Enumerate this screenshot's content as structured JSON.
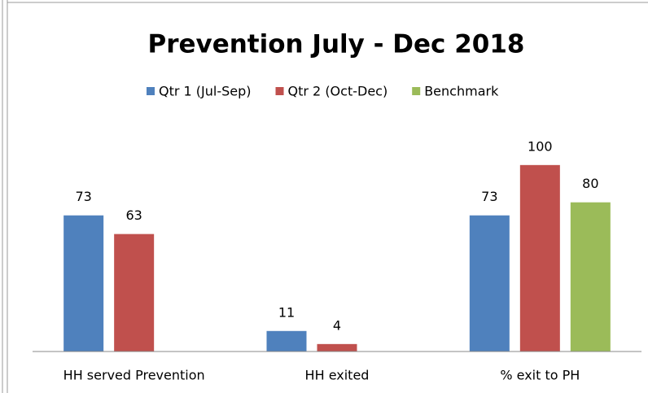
{
  "chart_data": {
    "type": "bar",
    "title": "Prevention July - Dec 2018",
    "categories": [
      "HH served Prevention",
      "HH exited",
      "% exit to PH"
    ],
    "series": [
      {
        "name": "Qtr 1 (Jul-Sep)",
        "color": "#4f81bd",
        "values": [
          73,
          11,
          73
        ]
      },
      {
        "name": "Qtr 2 (Oct-Dec)",
        "color": "#c0504d",
        "values": [
          63,
          4,
          100
        ]
      },
      {
        "name": "Benchmark",
        "color": "#9bbb59",
        "values": [
          null,
          null,
          80
        ]
      }
    ],
    "ylim": [
      0,
      120
    ],
    "legend": "top"
  }
}
